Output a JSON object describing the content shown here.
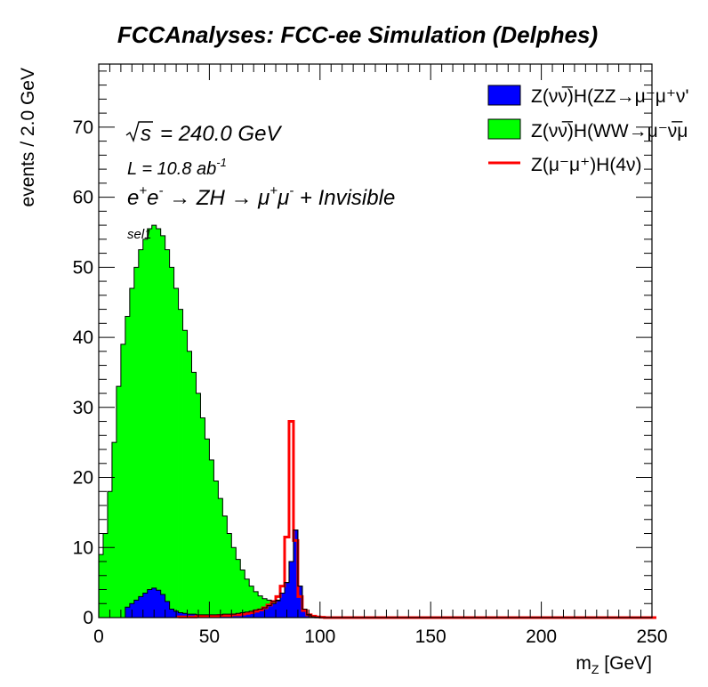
{
  "chart_data": {
    "type": "bar",
    "title": "FCCAnalyses: FCC-ee Simulation (Delphes)",
    "xlabel": "m_Z [GeV]",
    "ylabel": "events / 2.0 GeV",
    "xlim": [
      0,
      250
    ],
    "ylim": [
      0,
      79
    ],
    "bin_width": 2,
    "x_ticks": [
      0,
      50,
      100,
      150,
      200,
      250
    ],
    "y_ticks": [
      0,
      10,
      20,
      30,
      40,
      50,
      60,
      70
    ],
    "annotations": {
      "sqrt_s": "240.0 GeV",
      "lumi": "L = 10.8 ab",
      "lumi_exp": "-1",
      "process": "Invisible",
      "selection": "sel1"
    },
    "legend_position": "top-right",
    "series": [
      {
        "name": "Z(νν̅)H(ZZ→μ⁻μ⁺νν̅)",
        "legend_label": "Z(νν̅)H(ZZ→μ⁻μ⁺ν'",
        "style": "filled",
        "color": "#0000ff",
        "x_start": 0,
        "values": [
          0,
          0,
          0,
          0,
          0,
          0,
          1.5,
          2.0,
          2.5,
          3.0,
          3.5,
          4.0,
          4.2,
          3.9,
          3.3,
          2.3,
          1.2,
          0.9,
          0.7,
          0.6,
          0.5,
          0.5,
          0.4,
          0.4,
          0.4,
          0.4,
          0.4,
          0.4,
          0.5,
          0.5,
          0.5,
          0.6,
          0.7,
          0.8,
          0.9,
          1.1,
          1.2,
          1.4,
          1.7,
          2.0,
          2.5,
          3.5,
          5.0,
          8.0,
          12.5,
          4.5,
          1.2,
          0.4,
          0.1,
          0.05,
          0,
          0,
          0,
          0,
          0,
          0,
          0,
          0,
          0,
          0,
          0,
          0,
          0,
          0,
          0,
          0,
          0,
          0,
          0,
          0,
          0,
          0,
          0,
          0,
          0,
          0,
          0,
          0,
          0,
          0,
          0,
          0,
          0,
          0,
          0,
          0,
          0,
          0,
          0,
          0,
          0,
          0,
          0,
          0,
          0,
          0,
          0,
          0,
          0,
          0,
          0,
          0,
          0,
          0,
          0,
          0,
          0,
          0,
          0,
          0,
          0,
          0,
          0,
          0,
          0,
          0,
          0,
          0,
          0,
          0,
          0,
          0,
          0,
          0,
          0
        ]
      },
      {
        "name": "Z(νν̅)H(WW→μ⁻ν̅μ⁺ν)",
        "legend_label": "Z(νν̅)H(WW→μ⁻ν̅μ",
        "style": "filled-stacked",
        "color": "#00ff00",
        "x_start": 0,
        "values": [
          0,
          0,
          0,
          0,
          0,
          0,
          1.5,
          2.0,
          2.5,
          3.0,
          3.5,
          4.0,
          4.2,
          3.9,
          3.3,
          2.3,
          1.2,
          0.9,
          0.7,
          0.6,
          0.5,
          0.5,
          0.4,
          0.4,
          0.4,
          0.4,
          0.4,
          0.4,
          0.5,
          0.5,
          0.5,
          0.6,
          0.7,
          0.8,
          0.9,
          1.1,
          1.2,
          1.4,
          1.7,
          2.0,
          2.5,
          3.5,
          5.0,
          8.0,
          12.5,
          4.5,
          1.2,
          0.4,
          0.1,
          0.05,
          0,
          0,
          0,
          0,
          0,
          0,
          0,
          0,
          0,
          0,
          0,
          0,
          0,
          0,
          0,
          0,
          0,
          0,
          0,
          0,
          0,
          0,
          0,
          0,
          0,
          0,
          0,
          0,
          0,
          0,
          0,
          0,
          0,
          0,
          0,
          0,
          0,
          0,
          0,
          0,
          0,
          0,
          0,
          0,
          0,
          0,
          0,
          0,
          0,
          0,
          0,
          0,
          0,
          0,
          0,
          0,
          0,
          0,
          0,
          0,
          0,
          0,
          0,
          0,
          0,
          0,
          0,
          0,
          0,
          0,
          0,
          0,
          0,
          0,
          0
        ],
        "total_values": [
          9,
          12,
          18,
          25,
          33,
          39,
          43,
          47,
          50,
          52.5,
          54,
          55.5,
          56,
          55.5,
          54.5,
          52.5,
          50,
          47,
          44,
          41,
          38,
          35,
          32,
          28.5,
          25.5,
          22.5,
          19.5,
          17,
          14.5,
          12,
          10,
          8.3,
          6.8,
          5.5,
          4.5,
          3.7,
          3.1,
          2.7,
          2.5,
          2.3,
          2.4,
          3.5,
          5.0,
          8.0,
          12.5,
          4.5,
          1.2,
          0.4,
          0.1,
          0.05,
          0,
          0,
          0,
          0,
          0,
          0,
          0,
          0,
          0,
          0,
          0,
          0,
          0,
          0,
          0,
          0,
          0,
          0,
          0,
          0,
          0,
          0,
          0,
          0,
          0,
          0,
          0,
          0,
          0,
          0,
          0,
          0,
          0,
          0,
          0,
          0,
          0,
          0,
          0,
          0,
          0,
          0,
          0,
          0,
          0,
          0,
          0,
          0,
          0,
          0,
          0,
          0,
          0,
          0,
          0,
          0,
          0,
          0,
          0,
          0,
          0,
          0,
          0,
          0,
          0,
          0,
          0,
          0,
          0,
          0,
          0,
          0
        ]
      },
      {
        "name": "Z(μ⁻μ⁺)H(4ν)",
        "legend_label": "Z(μ⁻μ⁺)H(4ν)",
        "style": "line",
        "color": "#ff0000",
        "x_start": 0,
        "values": [
          0,
          0,
          0,
          0,
          0,
          0,
          0,
          0,
          0,
          0,
          0,
          0,
          0,
          0,
          0,
          0,
          0,
          0,
          0.1,
          0.1,
          0.1,
          0.1,
          0.2,
          0.2,
          0.2,
          0.2,
          0.2,
          0.3,
          0.3,
          0.3,
          0.4,
          0.4,
          0.5,
          0.6,
          0.7,
          0.9,
          1.1,
          1.4,
          1.8,
          2.3,
          3.0,
          4.5,
          11.5,
          28.0,
          11.0,
          3.0,
          1.0,
          0.4,
          0.2,
          0.1,
          0.05,
          0,
          0,
          0,
          0,
          0,
          0,
          0,
          0,
          0,
          0,
          0,
          0,
          0,
          0,
          0,
          0,
          0,
          0,
          0,
          0,
          0,
          0,
          0,
          0,
          0,
          0,
          0,
          0,
          0,
          0,
          0,
          0,
          0,
          0,
          0,
          0,
          0,
          0,
          0,
          0,
          0,
          0,
          0,
          0,
          0,
          0,
          0,
          0,
          0,
          0,
          0,
          0,
          0,
          0,
          0,
          0,
          0,
          0,
          0,
          0,
          0,
          0,
          0,
          0,
          0,
          0,
          0,
          0,
          0,
          0,
          0,
          0,
          0,
          0,
          0
        ]
      }
    ]
  }
}
